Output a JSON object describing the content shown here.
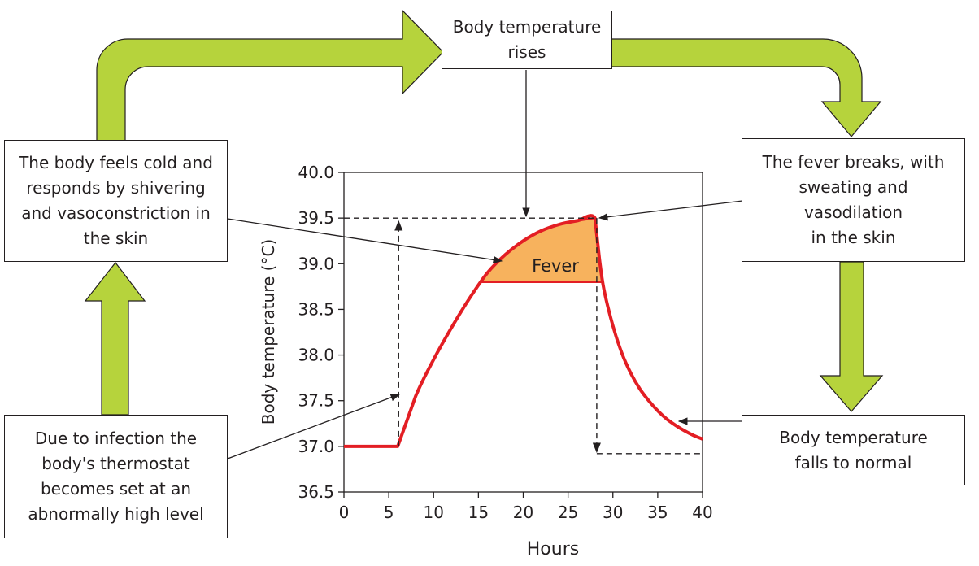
{
  "boxes": {
    "top": [
      "Body temperature",
      "rises"
    ],
    "left_upper": [
      "The body feels cold and",
      "responds by shivering",
      "and vasoconstriction in",
      "the skin"
    ],
    "left_lower": [
      "Due to infection the",
      "body's thermostat",
      "becomes set at an",
      "abnormally high level"
    ],
    "right_upper": [
      "The fever breaks, with",
      "sweating and",
      "vasodilation",
      "in the skin"
    ],
    "right_lower": [
      "Body temperature",
      "falls to normal"
    ]
  },
  "fever_label": "Fever",
  "colors": {
    "arrow_fill": "#b6d33c",
    "arrow_stroke": "#231f20",
    "curve": "#e31e24",
    "fever_fill": "#f7b25d"
  },
  "chart_data": {
    "type": "line",
    "xlabel": "Hours",
    "ylabel": "Body temperature (°C)",
    "xlim": [
      0,
      40
    ],
    "ylim": [
      36.5,
      40.0
    ],
    "x_ticks": [
      0,
      5,
      10,
      15,
      20,
      25,
      30,
      35,
      40
    ],
    "y_ticks": [
      36.5,
      37.0,
      37.5,
      38.0,
      38.5,
      39.0,
      39.5,
      40.0
    ],
    "grid": false,
    "series": [
      {
        "x": [
          0,
          6,
          8,
          10,
          12,
          14,
          16,
          18,
          20,
          22,
          24,
          26,
          28,
          28.5,
          29,
          30,
          31,
          32,
          33,
          34,
          35,
          36,
          37,
          38,
          39,
          40
        ],
        "y": [
          37.0,
          37.0,
          37.55,
          37.95,
          38.3,
          38.62,
          38.9,
          39.1,
          39.25,
          39.36,
          39.43,
          39.47,
          39.5,
          39.05,
          38.72,
          38.32,
          38.02,
          37.8,
          37.63,
          37.5,
          37.39,
          37.3,
          37.23,
          37.17,
          37.12,
          37.08
        ]
      }
    ],
    "fever_threshold": 38.8,
    "set_point": 39.5,
    "normal_after": 36.92,
    "set_point_time": 6.1,
    "break_time": 28.2
  }
}
